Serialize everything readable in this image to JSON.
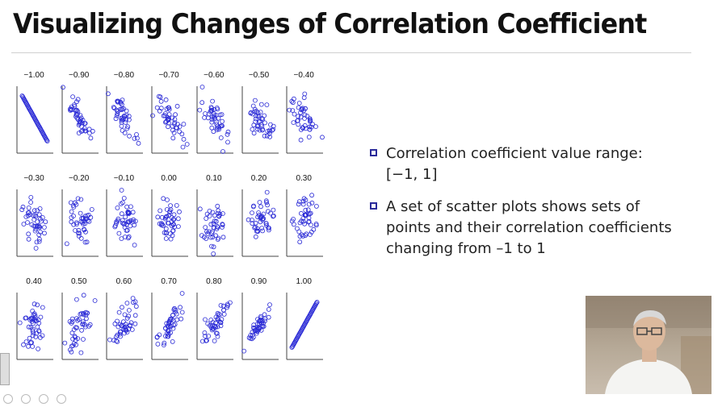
{
  "slide": {
    "title": "Visualizing Changes of Correlation Coefficient",
    "bullets": [
      {
        "text": "Correlation coefficient value range: [−1, 1]"
      },
      {
        "text": "A set of scatter plots shows sets of points and their correlation coefficients changing from –1 to 1"
      }
    ]
  },
  "colors": {
    "points": "#2b2bd6",
    "axis": "#444444",
    "bullet": "#2a2a9a"
  },
  "icons": {
    "left_handle": "panel-handle-icon",
    "tools": [
      "pen-tool-icon",
      "highlighter-tool-icon",
      "zoom-tool-icon",
      "more-tools-icon"
    ]
  },
  "chart_data": [
    {
      "type": "scatter",
      "title": "−1.00",
      "r": -1.0
    },
    {
      "type": "scatter",
      "title": "−0.90",
      "r": -0.9
    },
    {
      "type": "scatter",
      "title": "−0.80",
      "r": -0.8
    },
    {
      "type": "scatter",
      "title": "−0.70",
      "r": -0.7
    },
    {
      "type": "scatter",
      "title": "−0.60",
      "r": -0.6
    },
    {
      "type": "scatter",
      "title": "−0.50",
      "r": -0.5
    },
    {
      "type": "scatter",
      "title": "−0.40",
      "r": -0.4
    },
    {
      "type": "scatter",
      "title": "−0.30",
      "r": -0.3
    },
    {
      "type": "scatter",
      "title": "−0.20",
      "r": -0.2
    },
    {
      "type": "scatter",
      "title": "−0.10",
      "r": -0.1
    },
    {
      "type": "scatter",
      "title": "0.00",
      "r": 0.0
    },
    {
      "type": "scatter",
      "title": "0.10",
      "r": 0.1
    },
    {
      "type": "scatter",
      "title": "0.20",
      "r": 0.2
    },
    {
      "type": "scatter",
      "title": "0.30",
      "r": 0.3
    },
    {
      "type": "scatter",
      "title": "0.40",
      "r": 0.4
    },
    {
      "type": "scatter",
      "title": "0.50",
      "r": 0.5
    },
    {
      "type": "scatter",
      "title": "0.60",
      "r": 0.6
    },
    {
      "type": "scatter",
      "title": "0.70",
      "r": 0.7
    },
    {
      "type": "scatter",
      "title": "0.80",
      "r": 0.8
    },
    {
      "type": "scatter",
      "title": "0.90",
      "r": 0.9
    },
    {
      "type": "scatter",
      "title": "1.00",
      "r": 1.0
    }
  ]
}
